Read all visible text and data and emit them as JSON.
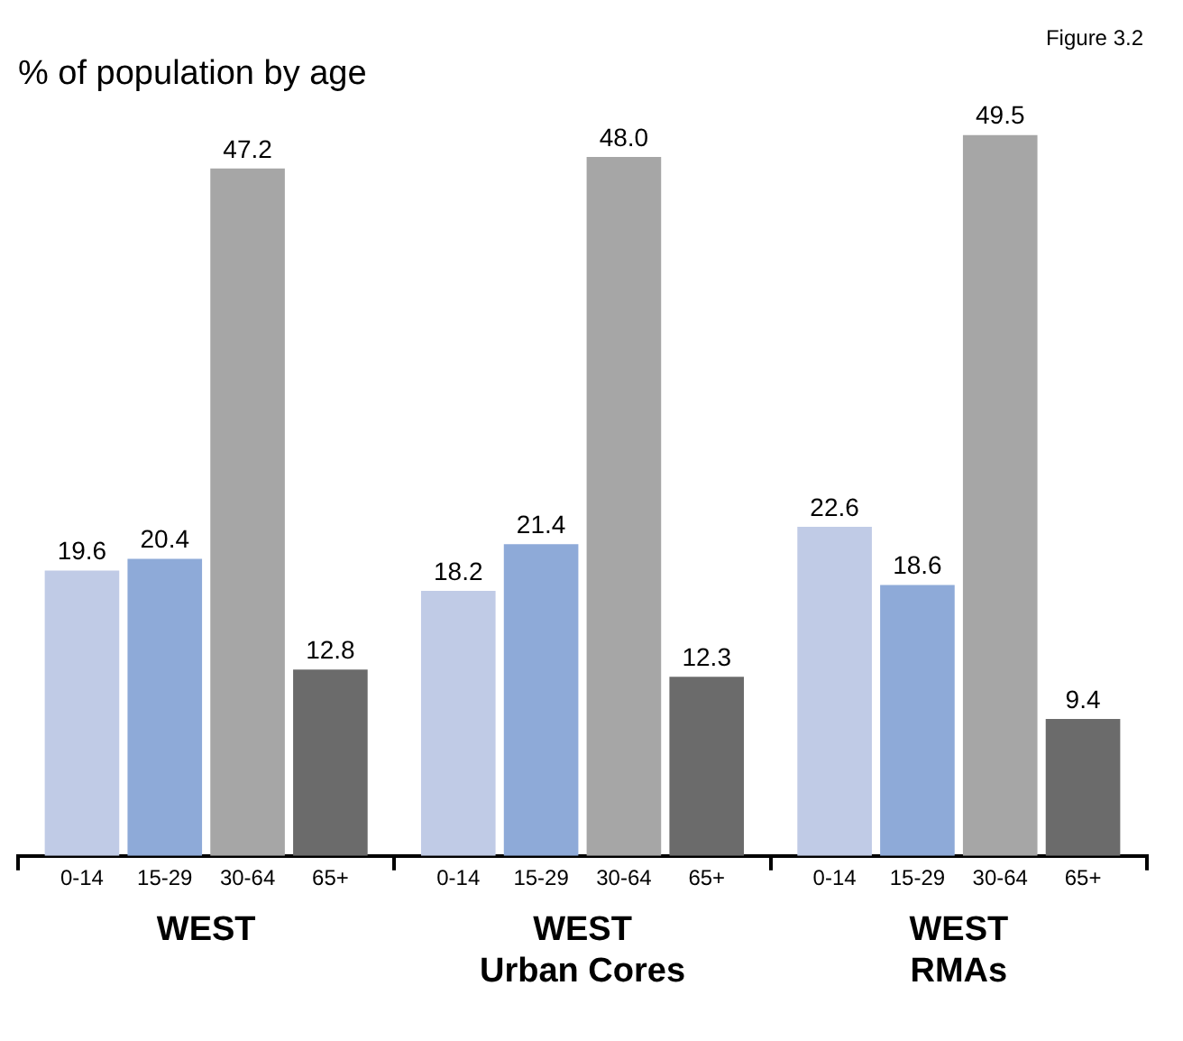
{
  "chart_data": {
    "type": "bar",
    "title": "% of population by age",
    "annotations": [
      "Figure 3.2"
    ],
    "categories": [
      "WEST",
      "WEST Urban Cores",
      "WEST RMAs"
    ],
    "series": [
      {
        "name": "0-14",
        "color": "#c0cbe6",
        "values": [
          19.6,
          18.2,
          22.6
        ],
        "value_labels": [
          "19.6",
          "18.2",
          "22.6"
        ]
      },
      {
        "name": "15-29",
        "color": "#8eaad8",
        "values": [
          20.4,
          21.4,
          18.6
        ],
        "value_labels": [
          "20.4",
          "21.4",
          "18.6"
        ]
      },
      {
        "name": "30-64",
        "color": "#a6a6a6",
        "values": [
          47.2,
          48.0,
          49.5
        ],
        "value_labels": [
          "47.2",
          "48.0",
          "49.5"
        ]
      },
      {
        "name": "65+",
        "color": "#6b6b6b",
        "values": [
          12.8,
          12.3,
          9.4
        ],
        "value_labels": [
          "12.8",
          "12.3",
          "9.4"
        ]
      }
    ],
    "legend": false
  }
}
